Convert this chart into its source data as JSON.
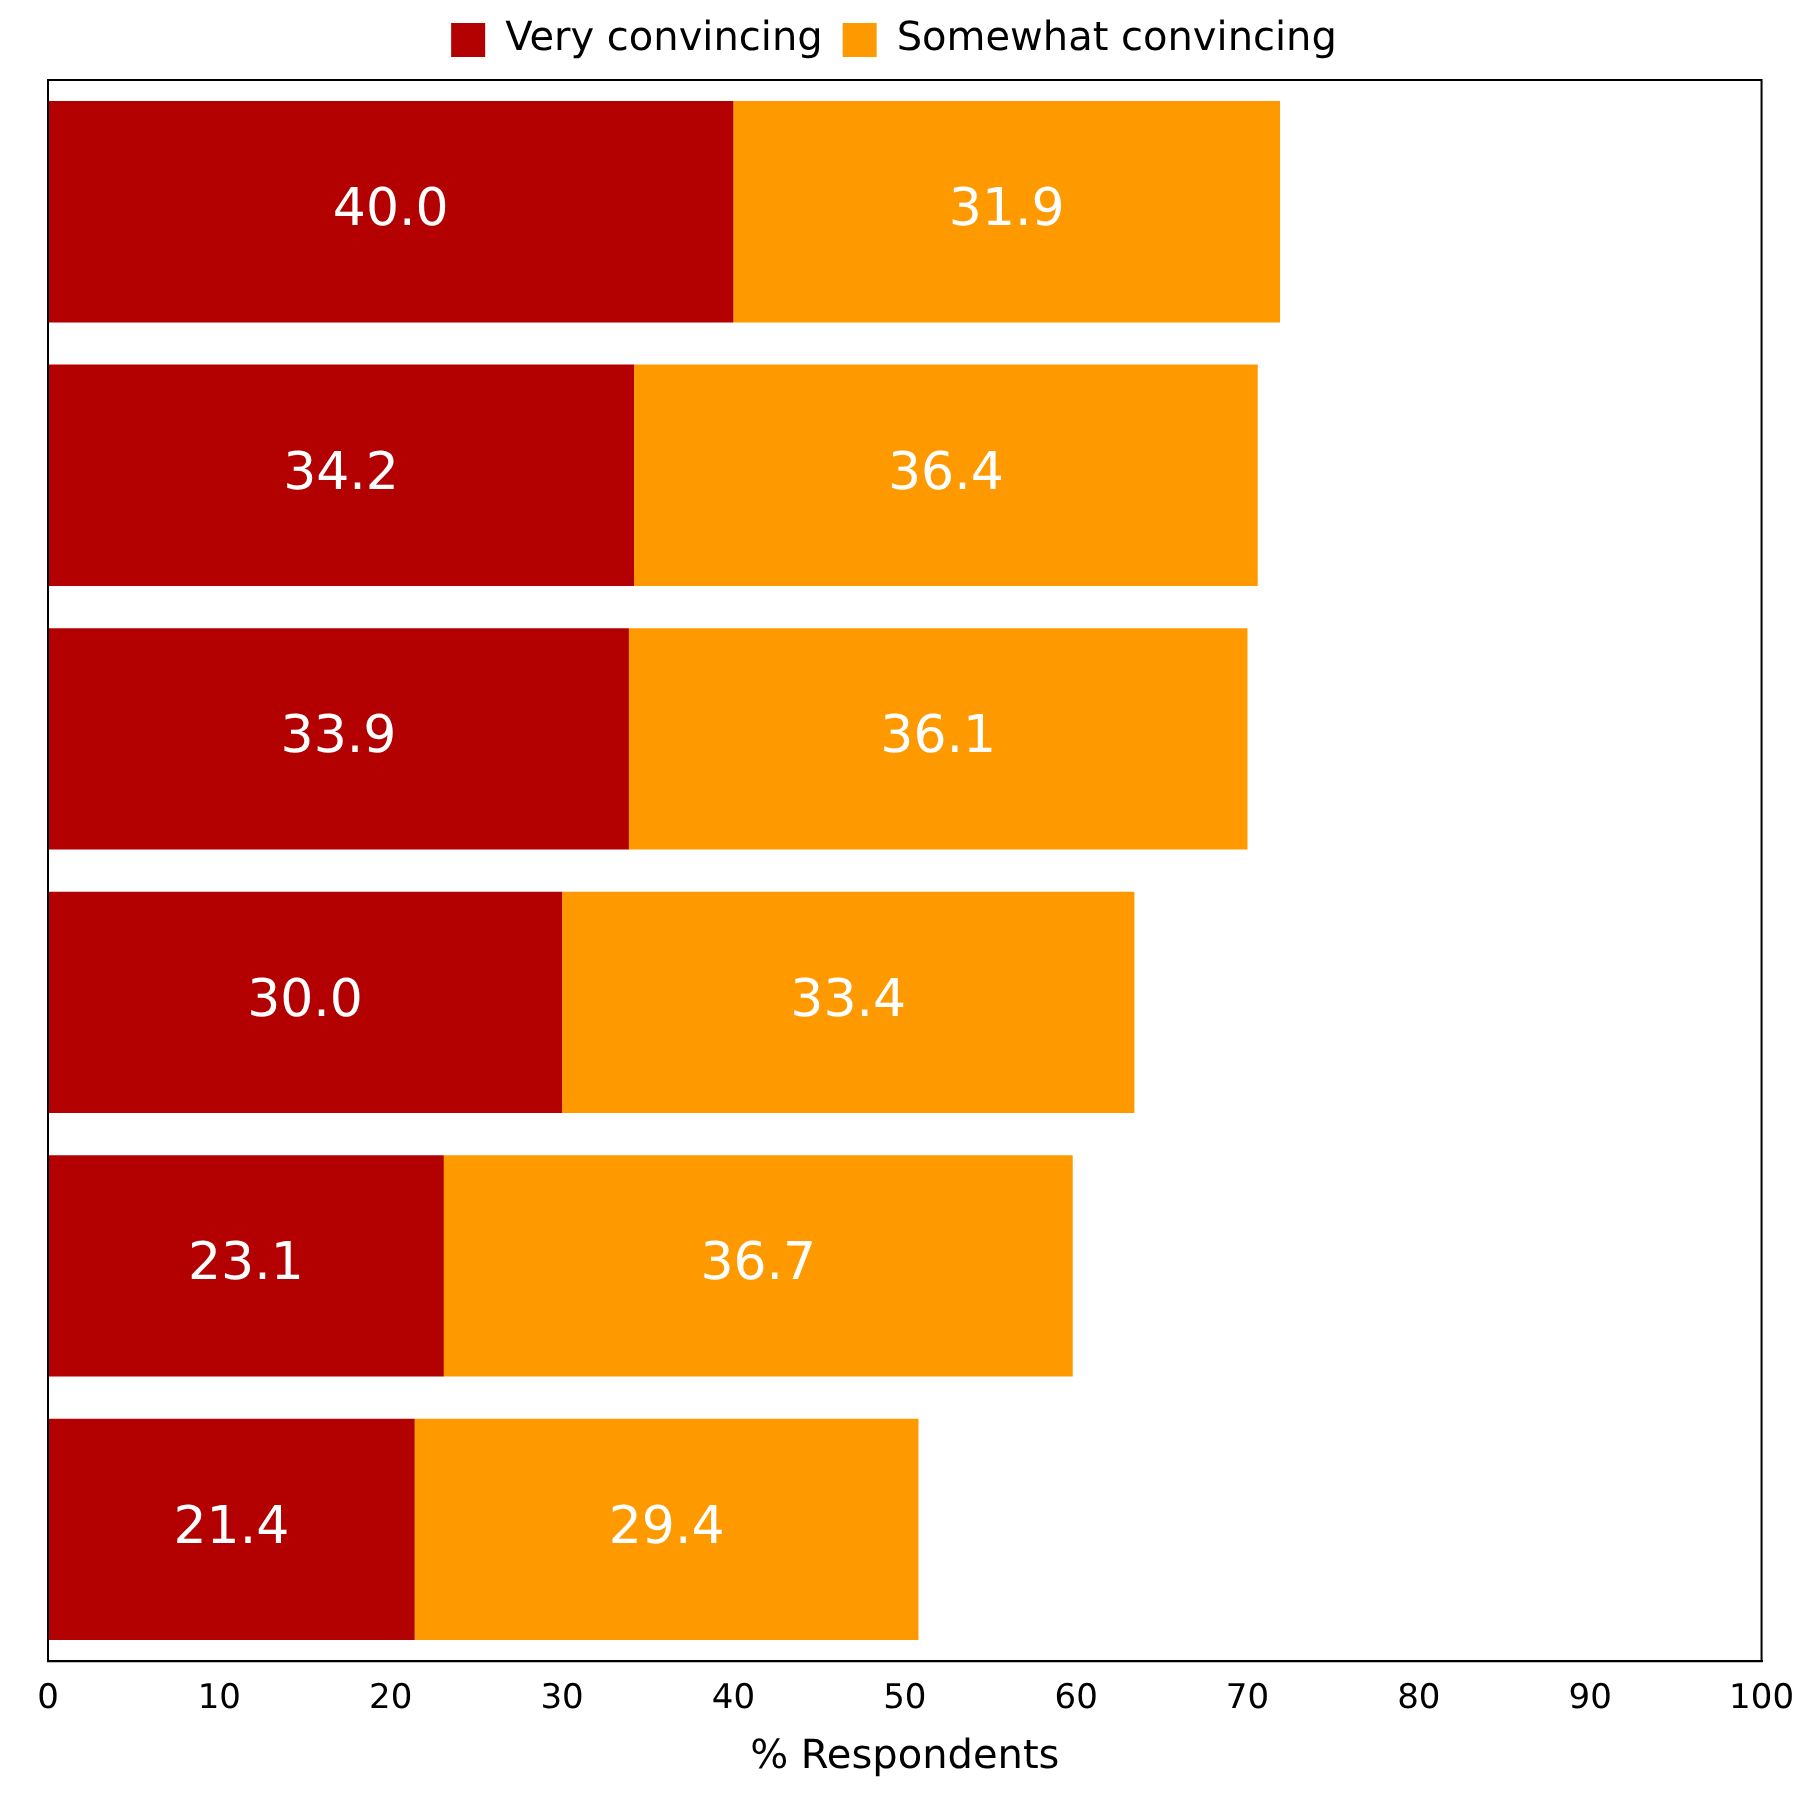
{
  "chart_data": {
    "type": "bar",
    "orientation": "horizontal",
    "stacked": true,
    "xlabel": "% Respondents",
    "categories": [
      null,
      null,
      null,
      null,
      null,
      null
    ],
    "series": [
      {
        "name": "Very convincing",
        "color": "#b30000",
        "values": [
          40.0,
          34.2,
          33.9,
          30.0,
          23.1,
          21.4
        ],
        "value_labels": [
          "40.0",
          "34.2",
          "33.9",
          "30.0",
          "23.1",
          "21.4"
        ]
      },
      {
        "name": "Somewhat convincing",
        "color": "#ff9900",
        "values": [
          31.9,
          36.4,
          36.1,
          33.4,
          36.7,
          29.4
        ],
        "value_labels": [
          "31.9",
          "36.4",
          "36.1",
          "33.4",
          "36.7",
          "29.4"
        ]
      }
    ],
    "xlim": [
      0,
      100
    ],
    "xticks": [
      0,
      10,
      20,
      30,
      40,
      50,
      60,
      70,
      80,
      90,
      100
    ],
    "grid": false,
    "legend": "top"
  }
}
